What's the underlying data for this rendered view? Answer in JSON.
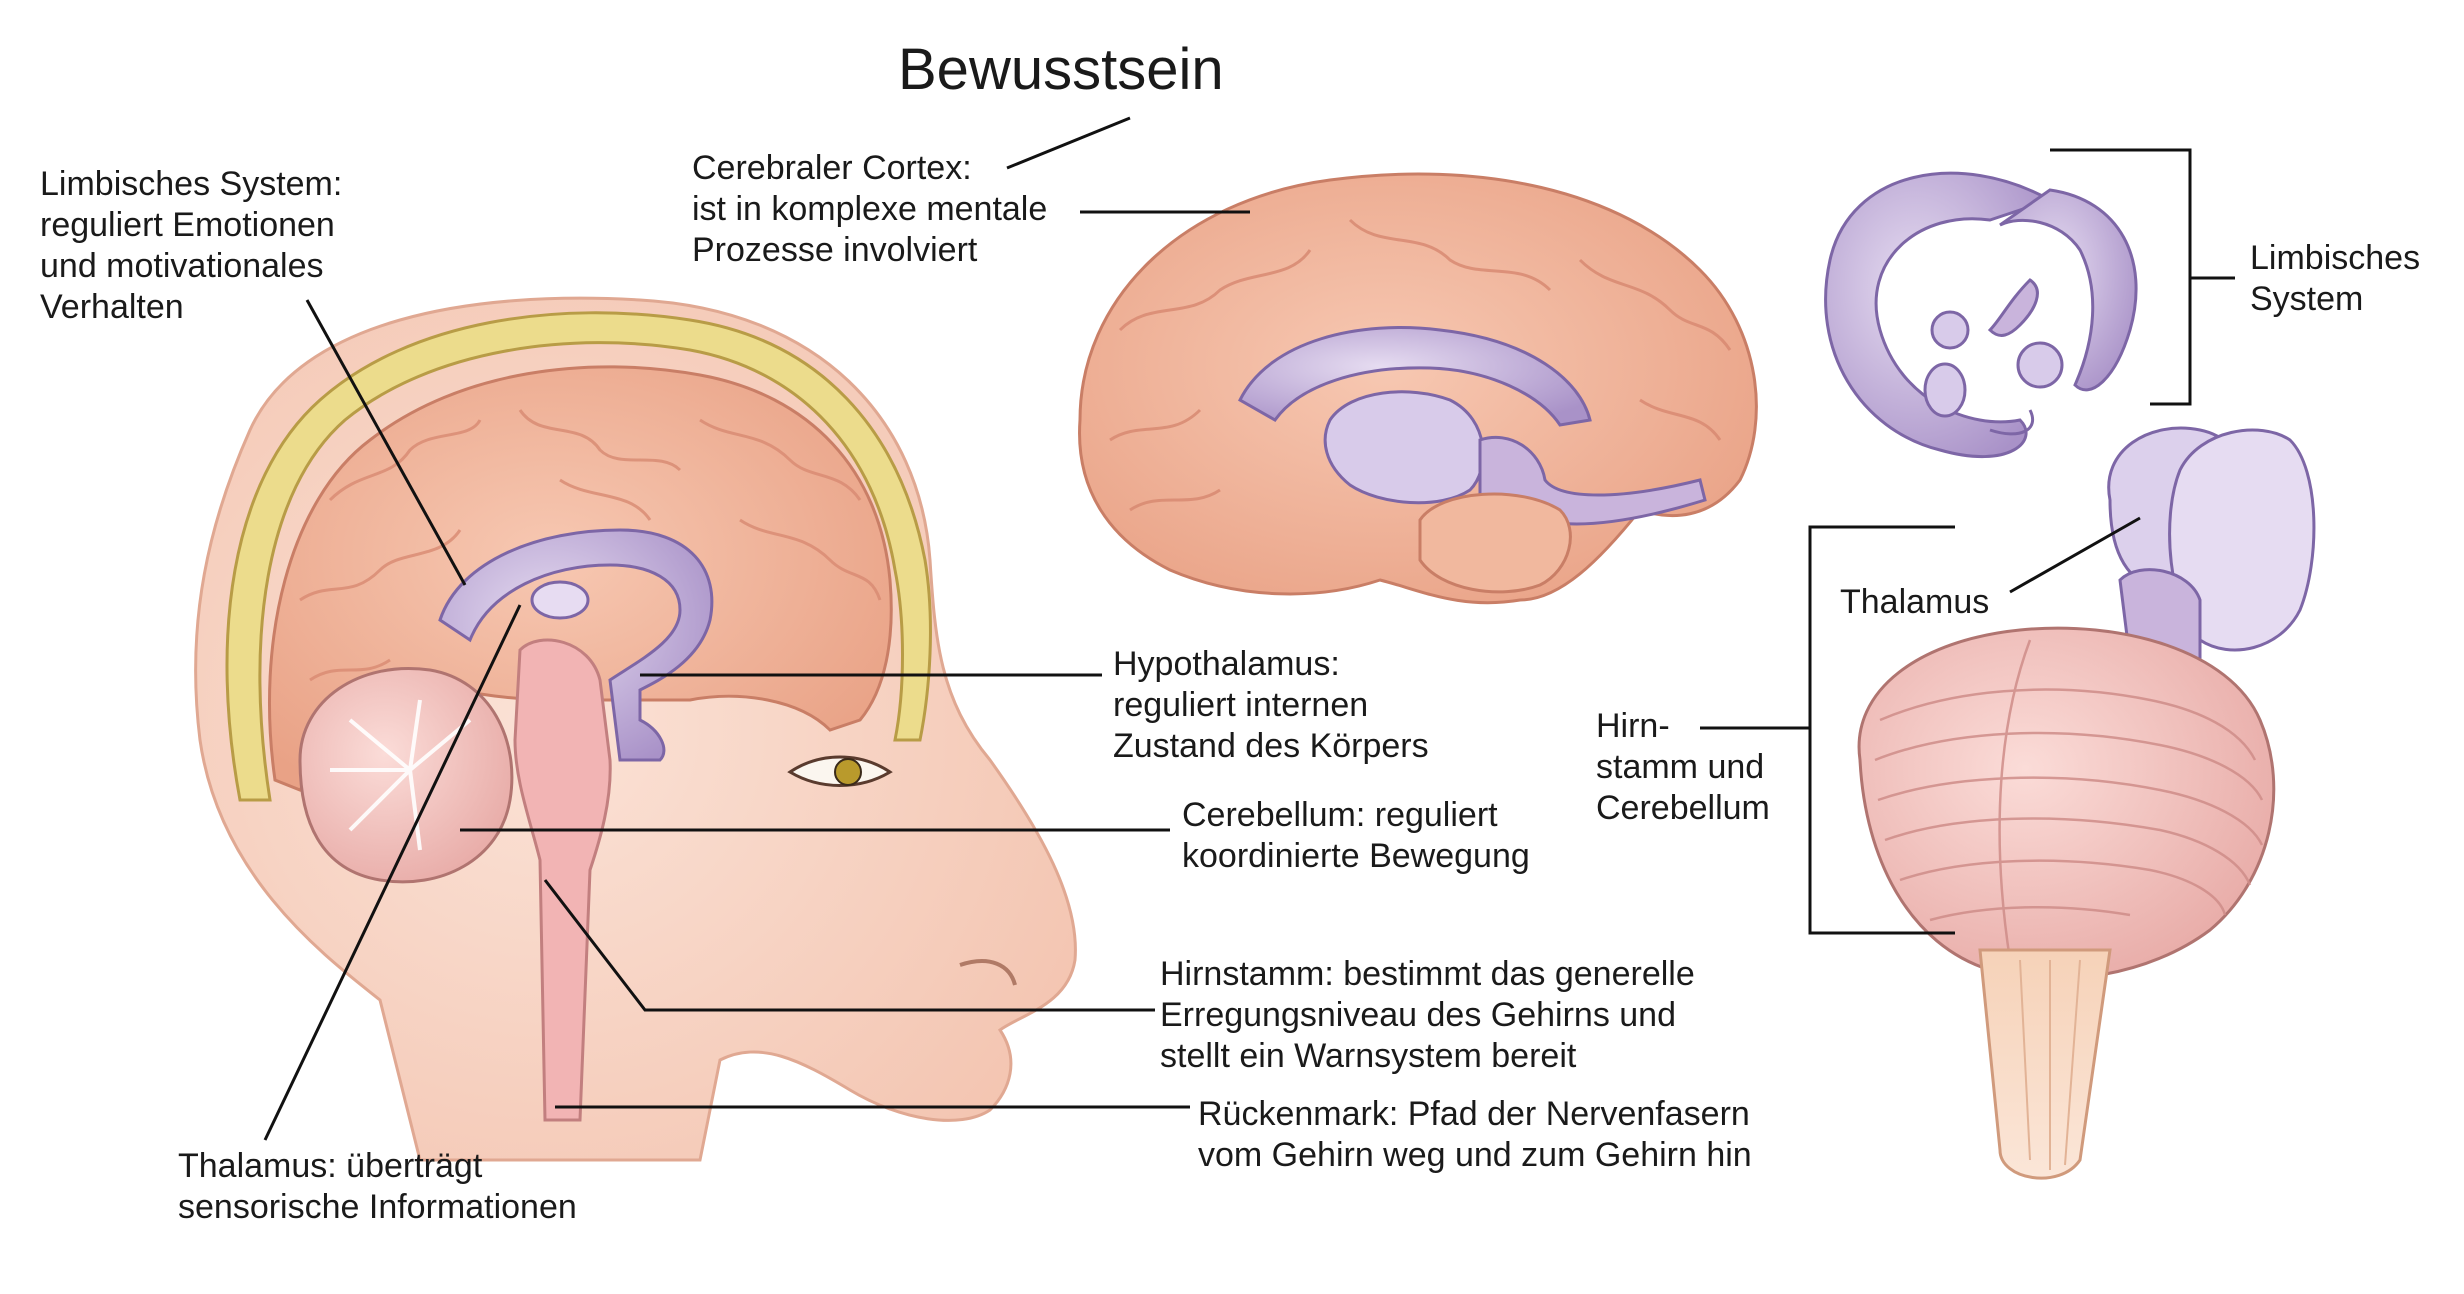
{
  "title": "Bewusstsein",
  "labels": {
    "limbic": {
      "head": "Limbisches System:",
      "lines": [
        "reguliert Emotionen",
        "und motivationales",
        "Verhalten"
      ]
    },
    "cortex": {
      "head": "Cerebraler Cortex:",
      "lines": [
        "ist in komplexe mentale",
        "Prozesse involviert"
      ]
    },
    "hypothalamus": {
      "head": "Hypothalamus:",
      "lines": [
        "reguliert internen",
        "Zustand des Körpers"
      ]
    },
    "cerebellum": {
      "head": "Cerebellum:",
      "rest": " reguliert",
      "lines": [
        "koordinierte Bewegung"
      ]
    },
    "brainstem": {
      "head": "Hirnstamm:",
      "rest": " bestimmt das generelle",
      "lines": [
        "Erregungsniveau des Gehirns und",
        "stellt ein Warnsystem bereit"
      ]
    },
    "spinal": {
      "head": "Rückenmark:",
      "rest": " Pfad der Nervenfasern",
      "lines": [
        "vom Gehirn weg und zum Gehirn hin"
      ]
    },
    "thalamus": {
      "head": "Thalamus:",
      "rest": " überträgt",
      "lines": [
        "sensorische Informationen"
      ]
    },
    "limbic_right": [
      "Limbisches",
      "System"
    ],
    "thalamus_right": "Thalamus",
    "brainstem_right": [
      "Hirn-",
      "stamm und",
      "Cerebellum"
    ]
  },
  "colors": {
    "cortex": "#f2b9a0",
    "cortex_dark": "#e39a80",
    "limbic": "#c9b4dc",
    "limbic_dark": "#9b83c0",
    "skin": "#f8d6c8",
    "skull": "#e8d98a",
    "brainstem": "#f0b5b5",
    "line": "#111111"
  }
}
